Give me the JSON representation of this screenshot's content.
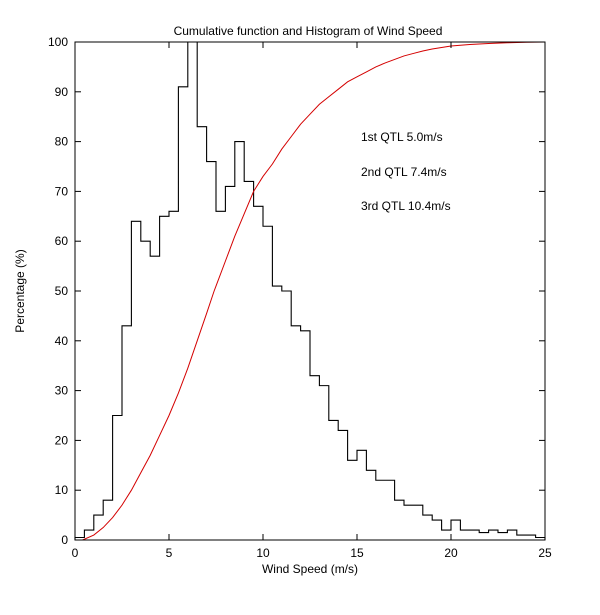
{
  "chart_data": {
    "type": "line",
    "title": "Cumulative function and Histogram of Wind Speed",
    "xlabel": "Wind Speed (m/s)",
    "ylabel": "Percentage (%)",
    "xlim": [
      0,
      25
    ],
    "ylim": [
      0,
      100
    ],
    "x_ticks": [
      0,
      5,
      10,
      15,
      20,
      25
    ],
    "y_ticks": [
      0,
      10,
      20,
      30,
      40,
      50,
      60,
      70,
      80,
      90,
      100
    ],
    "grid": false,
    "legend": "none",
    "annotation_color": "#d40000",
    "annotations": [
      "1st QTL 5.0m/s",
      "2nd QTL 7.4m/s",
      "3rd QTL 10.4m/s"
    ],
    "series": [
      {
        "name": "wind-speed-histogram",
        "style": "stairs",
        "color": "#000000",
        "bin_start": 0,
        "bin_width": 0.5,
        "values": [
          0.5,
          2,
          5,
          8,
          25,
          43,
          64,
          60,
          57,
          65,
          66,
          91,
          104,
          83,
          76,
          66,
          71,
          80,
          72,
          67,
          63,
          51,
          50,
          43,
          42,
          33,
          31,
          24,
          22,
          16,
          18,
          14,
          12,
          12,
          8,
          7,
          7,
          5,
          4,
          2,
          4,
          2,
          2,
          1.5,
          2,
          1.5,
          2,
          1,
          1,
          0.5
        ]
      },
      {
        "name": "cumulative-distribution",
        "style": "line",
        "color": "#d40000",
        "points": [
          [
            0.4,
            0
          ],
          [
            1,
            1
          ],
          [
            1.5,
            2.5
          ],
          [
            2,
            4.5
          ],
          [
            2.5,
            7
          ],
          [
            3,
            10
          ],
          [
            3.5,
            13.5
          ],
          [
            4,
            17
          ],
          [
            4.5,
            21
          ],
          [
            5,
            25
          ],
          [
            5.5,
            29.5
          ],
          [
            6,
            34.5
          ],
          [
            6.5,
            40
          ],
          [
            7,
            45.5
          ],
          [
            7.4,
            50
          ],
          [
            7.5,
            51
          ],
          [
            8,
            56
          ],
          [
            8.5,
            61
          ],
          [
            9,
            65.5
          ],
          [
            9.5,
            70
          ],
          [
            10,
            73
          ],
          [
            10.4,
            75
          ],
          [
            10.5,
            75.5
          ],
          [
            11,
            78.5
          ],
          [
            11.5,
            81
          ],
          [
            12,
            83.5
          ],
          [
            12.5,
            85.5
          ],
          [
            13,
            87.5
          ],
          [
            13.5,
            89
          ],
          [
            14,
            90.5
          ],
          [
            14.5,
            92
          ],
          [
            15,
            93
          ],
          [
            15.5,
            94
          ],
          [
            16,
            95
          ],
          [
            16.5,
            95.8
          ],
          [
            17,
            96.5
          ],
          [
            17.5,
            97.2
          ],
          [
            18,
            97.7
          ],
          [
            18.5,
            98.2
          ],
          [
            19,
            98.6
          ],
          [
            19.5,
            98.9
          ],
          [
            20,
            99.2
          ],
          [
            21,
            99.5
          ],
          [
            22,
            99.7
          ],
          [
            23,
            99.85
          ],
          [
            24,
            99.95
          ],
          [
            25,
            100
          ]
        ]
      }
    ]
  }
}
